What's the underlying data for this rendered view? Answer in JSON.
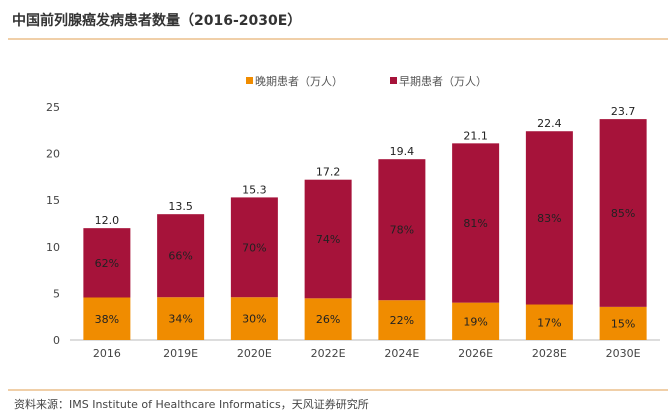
{
  "title": "中国前列腺癌发病患者数量（2016-2030E）",
  "source": "资料来源：IMS Institute of Healthcare Informatics，天风证券研究所",
  "chart_data": {
    "type": "bar",
    "stacked": true,
    "title": "",
    "xlabel": "",
    "ylabel": "",
    "ylim": [
      0,
      25
    ],
    "yticks": [
      0,
      5,
      10,
      15,
      20,
      25
    ],
    "grid": false,
    "legend_position": "top",
    "categories": [
      "2016",
      "2019E",
      "2020E",
      "2022E",
      "2024E",
      "2026E",
      "2028E",
      "2030E"
    ],
    "totals": [
      12.0,
      13.5,
      15.3,
      17.2,
      19.4,
      21.1,
      22.4,
      23.7
    ],
    "total_labels": [
      "12.0",
      "13.5",
      "15.3",
      "17.2",
      "19.4",
      "21.1",
      "22.4",
      "23.7"
    ],
    "series": [
      {
        "name": "晚期患者（万人）",
        "color": "#f08c00",
        "share_percent": [
          38,
          34,
          30,
          26,
          22,
          19,
          17,
          15
        ],
        "labels": [
          "38%",
          "34%",
          "30%",
          "26%",
          "22%",
          "19%",
          "17%",
          "15%"
        ]
      },
      {
        "name": "早期患者（万人）",
        "color": "#a6133a",
        "share_percent": [
          62,
          66,
          70,
          74,
          78,
          81,
          83,
          85
        ],
        "labels": [
          "62%",
          "66%",
          "70%",
          "74%",
          "78%",
          "81%",
          "83%",
          "85%"
        ]
      }
    ]
  }
}
